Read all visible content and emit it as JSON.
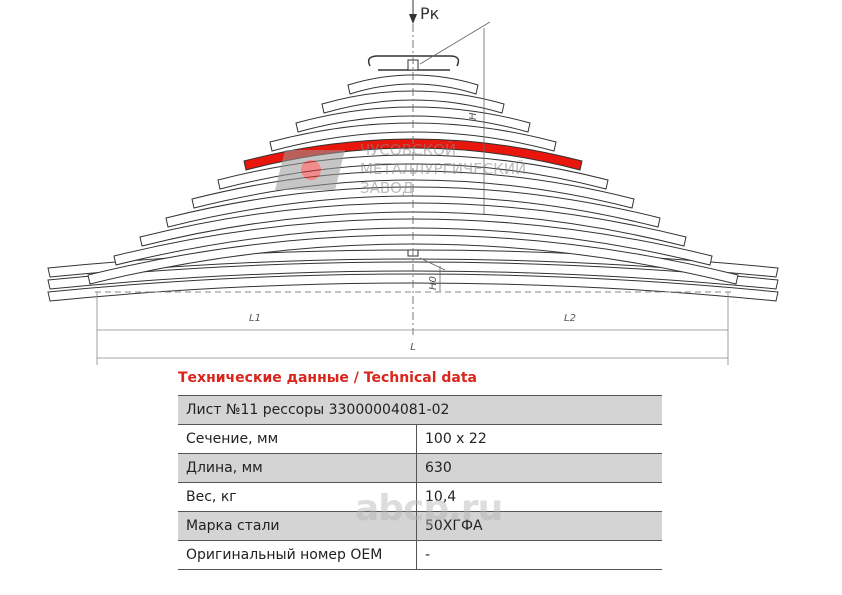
{
  "drawing": {
    "load_label": "Pк",
    "height_label": "H",
    "height0_label": "H0",
    "l1_label": "L1",
    "l2_label": "L2",
    "l_label": "L",
    "logo_text": [
      "ЧУСОВСКОЙ",
      "МЕТАЛЛУРГИЧЕСКИЙ",
      "ЗАВОД"
    ]
  },
  "table": {
    "title": "Технические данные / Technical data",
    "header": "Лист №11 рессоры 33000004081-02",
    "rows": [
      [
        "Сечение, мм",
        "100 х 22"
      ],
      [
        "Длина, мм",
        "630"
      ],
      [
        "Вес, кг",
        "10,4"
      ],
      [
        "Марка стали",
        "50ХГФА"
      ],
      [
        "Оригинальный номер OEM",
        "-"
      ]
    ]
  },
  "watermark": "abcp.ru"
}
